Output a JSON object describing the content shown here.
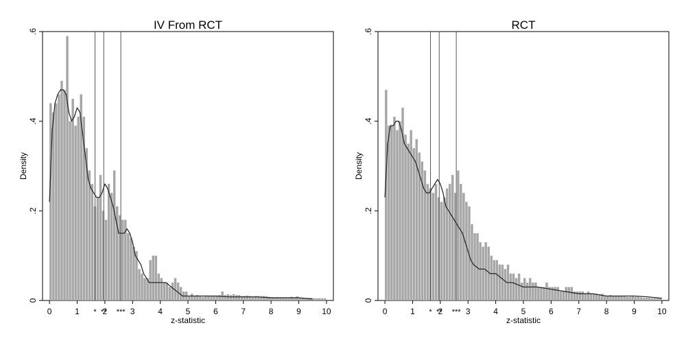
{
  "chart_data": [
    {
      "type": "bar",
      "title": "IV From RCT",
      "xlabel": "z-statistic",
      "ylabel": "Density",
      "xlim": [
        -0.25,
        10.25
      ],
      "ylim": [
        0,
        0.6
      ],
      "xticks": [
        "0",
        "1",
        "2",
        "3",
        "4",
        "5",
        "6",
        "7",
        "8",
        "9",
        "10"
      ],
      "yticks": [
        "0",
        ".2",
        ".4",
        ".6"
      ],
      "bin_width": 0.1,
      "bin_start": 0,
      "values": [
        0.44,
        0.42,
        0.44,
        0.46,
        0.49,
        0.47,
        0.59,
        0.4,
        0.45,
        0.39,
        0.41,
        0.46,
        0.41,
        0.34,
        0.29,
        0.26,
        0.21,
        0.23,
        0.28,
        0.2,
        0.18,
        0.26,
        0.24,
        0.29,
        0.21,
        0.19,
        0.18,
        0.18,
        0.15,
        0.14,
        0.12,
        0.11,
        0.07,
        0.06,
        0.05,
        0.05,
        0.09,
        0.1,
        0.1,
        0.06,
        0.05,
        0.04,
        0.04,
        0.03,
        0.04,
        0.05,
        0.04,
        0.03,
        0.02,
        0.02,
        0.01,
        0.015,
        0.01,
        0.012,
        0.01,
        0.008,
        0.011,
        0.01,
        0.01,
        0.01,
        0.011,
        0.012,
        0.02,
        0.012,
        0.014,
        0.012,
        0.014,
        0.012,
        0.012,
        0.01,
        0.01,
        0.011,
        0.01,
        0.009,
        0.01,
        0.01,
        0.009,
        0.01,
        0.009,
        0.008,
        0.007,
        0.006,
        0.007,
        0.005,
        0.005,
        0.005,
        0.005,
        0.008,
        0.005,
        0.009,
        0.005,
        0.005,
        0.005,
        0.006,
        0.006,
        0.005,
        0.005,
        0.005,
        0.005,
        0.005
      ],
      "kde_x": [
        0,
        0.1,
        0.2,
        0.3,
        0.4,
        0.5,
        0.6,
        0.7,
        0.8,
        0.9,
        1.0,
        1.1,
        1.2,
        1.3,
        1.4,
        1.5,
        1.6,
        1.7,
        1.8,
        1.9,
        2.0,
        2.1,
        2.2,
        2.3,
        2.4,
        2.5,
        2.6,
        2.7,
        2.8,
        2.9,
        3.0,
        3.1,
        3.2,
        3.3,
        3.4,
        3.5,
        3.6,
        3.7,
        3.8,
        3.9,
        4.0,
        4.2,
        4.4,
        4.6,
        4.8,
        5.0,
        5.5,
        6.0,
        6.5,
        7.0,
        7.5,
        8.0,
        8.5,
        9.0,
        9.5
      ],
      "kde_y": [
        0.22,
        0.38,
        0.44,
        0.46,
        0.47,
        0.47,
        0.46,
        0.42,
        0.4,
        0.41,
        0.43,
        0.42,
        0.37,
        0.32,
        0.27,
        0.25,
        0.24,
        0.23,
        0.23,
        0.24,
        0.26,
        0.25,
        0.23,
        0.21,
        0.18,
        0.15,
        0.15,
        0.15,
        0.16,
        0.15,
        0.13,
        0.1,
        0.09,
        0.08,
        0.06,
        0.05,
        0.04,
        0.04,
        0.04,
        0.04,
        0.04,
        0.04,
        0.03,
        0.02,
        0.01,
        0.01,
        0.01,
        0.01,
        0.008,
        0.008,
        0.008,
        0.006,
        0.006,
        0.006,
        0.003
      ],
      "vlines": [
        {
          "x": 1.645,
          "label": "*"
        },
        {
          "x": 1.96,
          "label": "**"
        },
        {
          "x": 2.576,
          "label": "***"
        }
      ],
      "grid": false,
      "legend": "none"
    },
    {
      "type": "bar",
      "title": "RCT",
      "xlabel": "z-statistic",
      "ylabel": "Density",
      "xlim": [
        -0.25,
        10.25
      ],
      "ylim": [
        0,
        0.6
      ],
      "xticks": [
        "0",
        "1",
        "2",
        "3",
        "4",
        "5",
        "6",
        "7",
        "8",
        "9",
        "10"
      ],
      "yticks": [
        "0",
        ".2",
        ".4",
        ".6"
      ],
      "bin_width": 0.1,
      "bin_start": 0,
      "values": [
        0.47,
        0.39,
        0.39,
        0.41,
        0.38,
        0.4,
        0.43,
        0.37,
        0.35,
        0.38,
        0.34,
        0.36,
        0.33,
        0.31,
        0.29,
        0.26,
        0.25,
        0.24,
        0.26,
        0.23,
        0.22,
        0.23,
        0.25,
        0.26,
        0.28,
        0.24,
        0.29,
        0.26,
        0.24,
        0.22,
        0.21,
        0.17,
        0.15,
        0.15,
        0.13,
        0.12,
        0.13,
        0.12,
        0.1,
        0.09,
        0.09,
        0.08,
        0.08,
        0.07,
        0.08,
        0.06,
        0.06,
        0.05,
        0.06,
        0.04,
        0.05,
        0.04,
        0.05,
        0.04,
        0.04,
        0.03,
        0.03,
        0.03,
        0.04,
        0.03,
        0.03,
        0.03,
        0.03,
        0.02,
        0.02,
        0.03,
        0.03,
        0.03,
        0.02,
        0.02,
        0.02,
        0.02,
        0.015,
        0.02,
        0.015,
        0.015,
        0.015,
        0.012,
        0.015,
        0.01,
        0.01,
        0.012,
        0.01,
        0.01,
        0.01,
        0.01,
        0.01,
        0.008,
        0.008,
        0.01,
        0.008,
        0.008,
        0.007,
        0.006,
        0.006,
        0.006,
        0.005,
        0.005,
        0.005,
        0.005
      ],
      "kde_x": [
        0,
        0.1,
        0.2,
        0.3,
        0.4,
        0.5,
        0.6,
        0.7,
        0.8,
        0.9,
        1.0,
        1.1,
        1.2,
        1.3,
        1.4,
        1.5,
        1.6,
        1.7,
        1.8,
        1.9,
        2.0,
        2.1,
        2.2,
        2.3,
        2.4,
        2.5,
        2.6,
        2.7,
        2.8,
        2.9,
        3.0,
        3.1,
        3.2,
        3.4,
        3.6,
        3.8,
        4.0,
        4.2,
        4.4,
        4.6,
        4.8,
        5.0,
        5.5,
        6.0,
        6.5,
        7.0,
        7.5,
        8.0,
        8.5,
        9.0,
        9.5,
        10.0
      ],
      "kde_y": [
        0.23,
        0.35,
        0.39,
        0.39,
        0.4,
        0.4,
        0.38,
        0.35,
        0.34,
        0.33,
        0.32,
        0.31,
        0.29,
        0.27,
        0.25,
        0.24,
        0.24,
        0.25,
        0.26,
        0.27,
        0.26,
        0.24,
        0.21,
        0.2,
        0.19,
        0.18,
        0.17,
        0.16,
        0.15,
        0.13,
        0.11,
        0.09,
        0.08,
        0.07,
        0.07,
        0.06,
        0.06,
        0.05,
        0.04,
        0.04,
        0.035,
        0.03,
        0.03,
        0.025,
        0.02,
        0.015,
        0.015,
        0.01,
        0.01,
        0.01,
        0.008,
        0.005
      ],
      "vlines": [
        {
          "x": 1.645,
          "label": "*"
        },
        {
          "x": 1.96,
          "label": "**"
        },
        {
          "x": 2.576,
          "label": "***"
        }
      ],
      "grid": false,
      "legend": "none"
    }
  ]
}
